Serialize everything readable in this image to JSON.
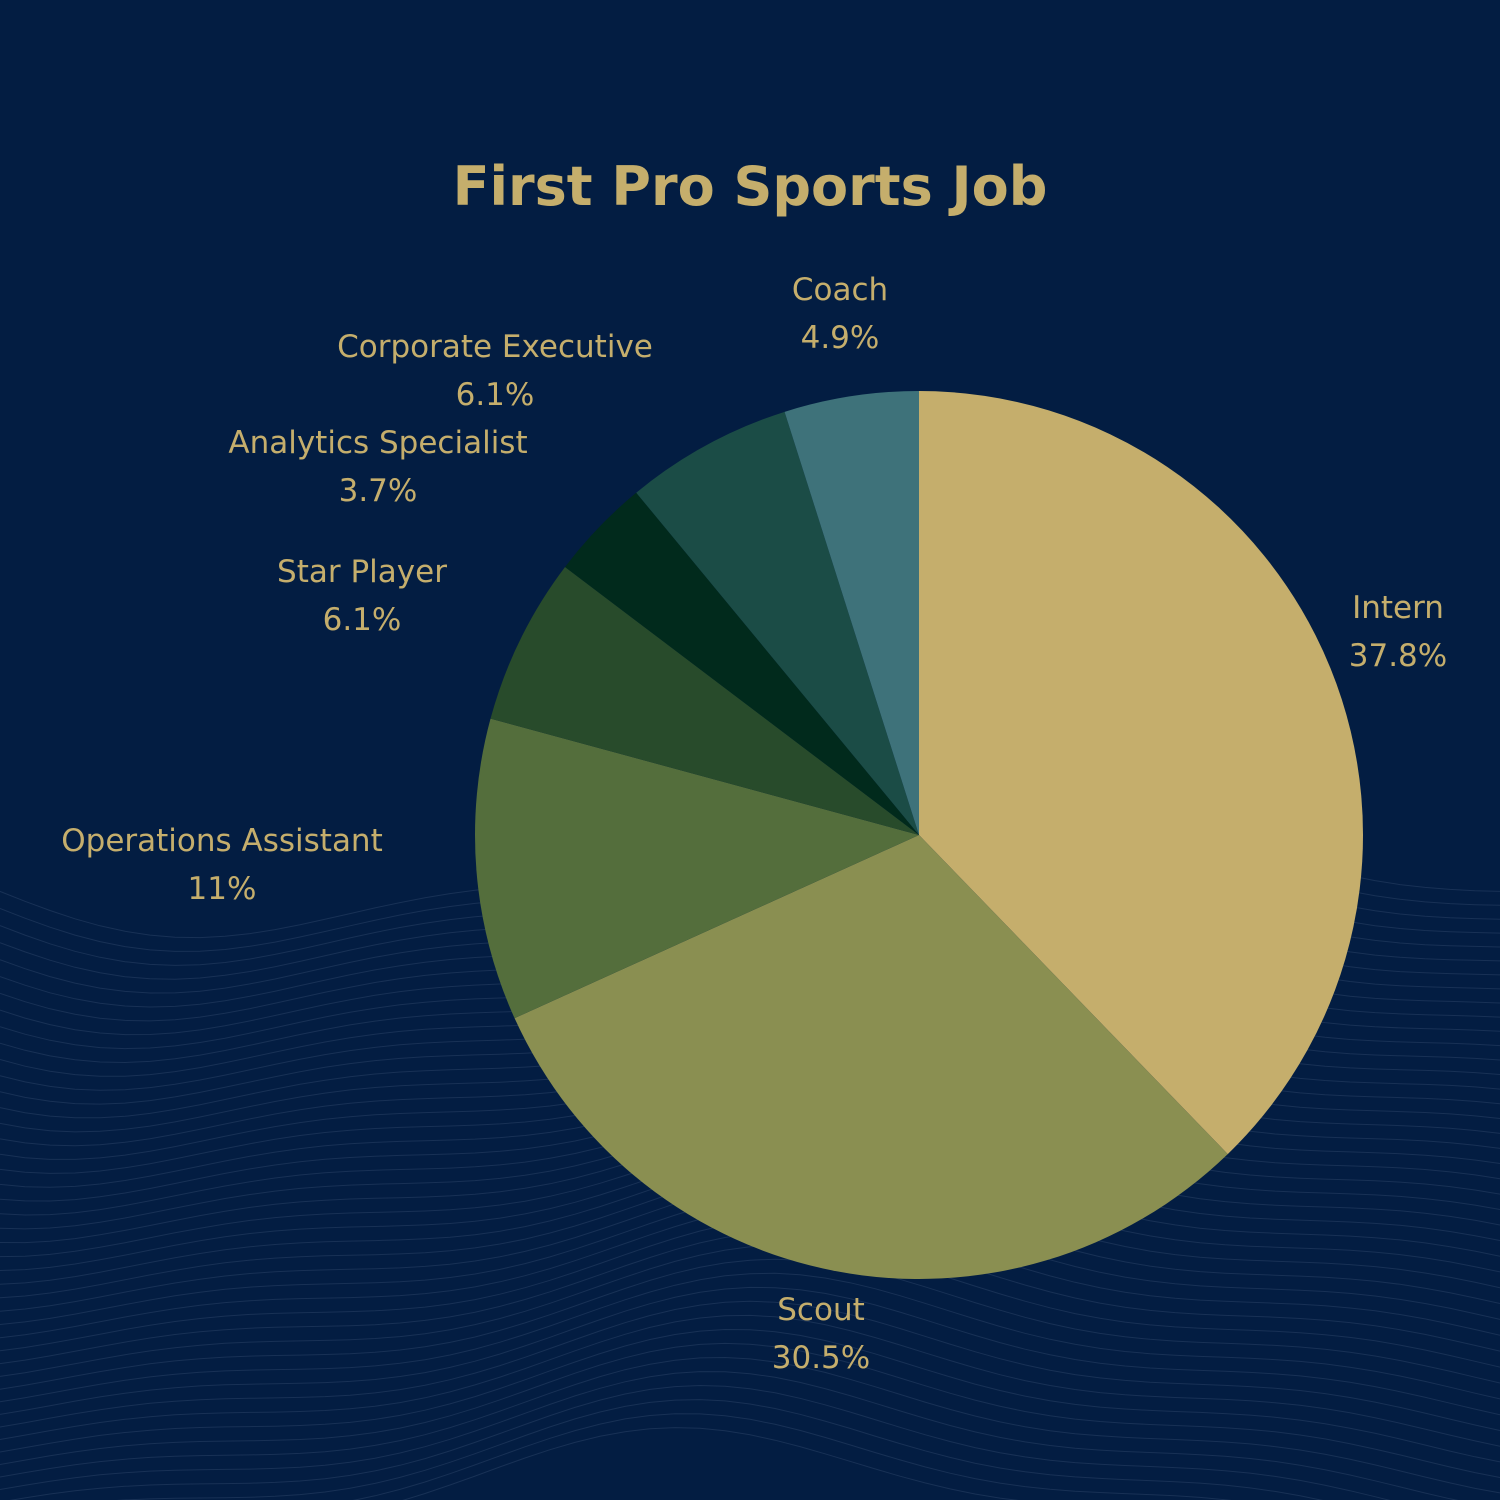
{
  "chart_data": {
    "type": "pie",
    "title": "First Pro Sports Job",
    "start_angle_deg": 0,
    "direction": "clockwise",
    "slices": [
      {
        "label": "Intern",
        "value": 37.8,
        "value_label": "37.8%",
        "color": "#c5ae6c"
      },
      {
        "label": "Scout",
        "value": 30.5,
        "value_label": "30.5%",
        "color": "#8a8f51"
      },
      {
        "label": "Operations Assistant",
        "value": 11,
        "value_label": "11%",
        "color": "#546e3c"
      },
      {
        "label": "Star Player",
        "value": 6.1,
        "value_label": "6.1%",
        "color": "#284b2b"
      },
      {
        "label": "Analytics Specialist",
        "value": 3.7,
        "value_label": "3.7%",
        "color": "#012a1c"
      },
      {
        "label": "Corporate Executive",
        "value": 6.1,
        "value_label": "6.1%",
        "color": "#1b4c46"
      },
      {
        "label": "Coach",
        "value": 4.9,
        "value_label": "4.9%",
        "color": "#3e727a"
      }
    ]
  },
  "colors": {
    "background": "#031d42",
    "text": "#c5ae6c",
    "wave_lines": "#2a4266"
  }
}
